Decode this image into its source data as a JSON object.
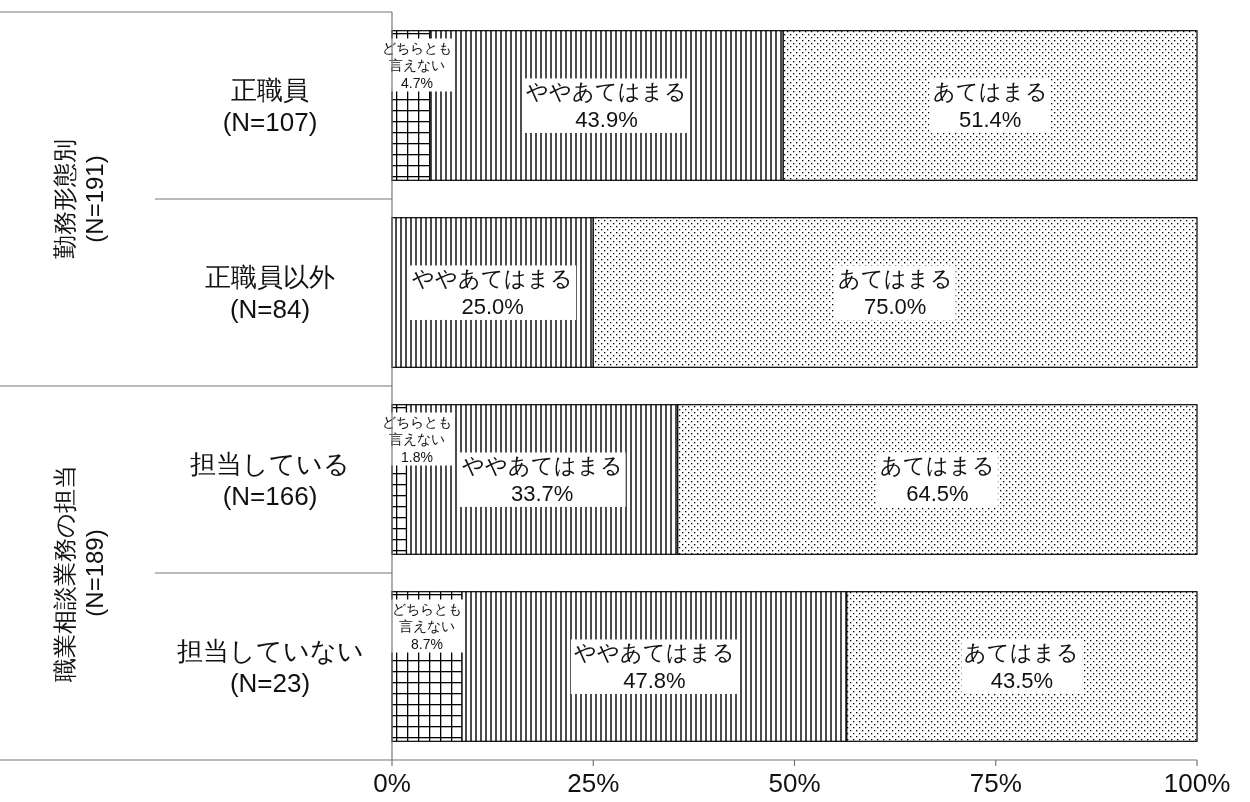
{
  "chart_data": {
    "type": "bar",
    "orientation": "horizontal",
    "stacked": true,
    "categories": [
      "正職員 (N=107)",
      "正職員以外 (N=84)",
      "担当している (N=166)",
      "担当していない (N=23)"
    ],
    "series": [
      {
        "name": "どちらとも言えない",
        "color": "#000000",
        "values": [
          4.7,
          null,
          1.8,
          8.7
        ],
        "value_labels": [
          "4.7%",
          null,
          "1.8%",
          "8.7%"
        ]
      },
      {
        "name": "ややあてはまる",
        "color": "#000000",
        "values": [
          43.9,
          25.0,
          33.7,
          47.8
        ],
        "value_labels": [
          "43.9%",
          "25.0%",
          "33.7%",
          "47.8%"
        ]
      },
      {
        "name": "あてはまる",
        "color": "#000000",
        "values": [
          51.4,
          75.0,
          64.5,
          43.5
        ],
        "value_labels": [
          "51.4%",
          "75.0%",
          "64.5%",
          "43.5%"
        ]
      }
    ],
    "xlim": [
      0,
      100
    ],
    "xticks": [
      {
        "value": 0,
        "label": "0%"
      },
      {
        "value": 25,
        "label": "25%"
      },
      {
        "value": 50,
        "label": "50%"
      },
      {
        "value": 75,
        "label": "75%"
      },
      {
        "value": 100,
        "label": "100%"
      }
    ],
    "annotations": [
      "勤務形態別 (N=191)",
      "職業相談業務の担当 (N=189)"
    ],
    "legend": false,
    "grid": false
  }
}
